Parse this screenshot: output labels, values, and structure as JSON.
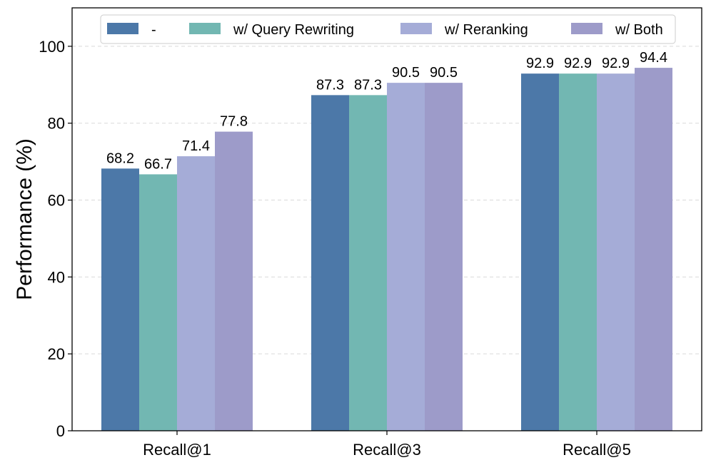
{
  "chart_data": {
    "type": "bar",
    "title": "",
    "xlabel": "",
    "ylabel": "Performance (%)",
    "ylim": [
      0,
      110
    ],
    "yticks": [
      0,
      20,
      40,
      60,
      80,
      100
    ],
    "grid": "y-dashed",
    "legend_position": "top",
    "categories": [
      "Recall@1",
      "Recall@3",
      "Recall@5"
    ],
    "series": [
      {
        "name": "-",
        "color": "#4c78a8",
        "values": [
          68.2,
          87.3,
          92.9
        ],
        "labels": [
          "68.2",
          "87.3",
          "92.9"
        ]
      },
      {
        "name": "w/ Query Rewriting",
        "color": "#72b7b2",
        "values": [
          66.7,
          87.3,
          92.9
        ],
        "labels": [
          "66.7",
          "87.3",
          "92.9"
        ]
      },
      {
        "name": "w/ Reranking",
        "color": "#a5acd7",
        "values": [
          71.4,
          90.5,
          92.9
        ],
        "labels": [
          "71.4",
          "90.5",
          "92.9"
        ]
      },
      {
        "name": "w/ Both",
        "color": "#9d9bc9",
        "values": [
          77.8,
          90.5,
          94.4
        ],
        "labels": [
          "77.8",
          "90.5",
          "94.4"
        ]
      }
    ]
  }
}
